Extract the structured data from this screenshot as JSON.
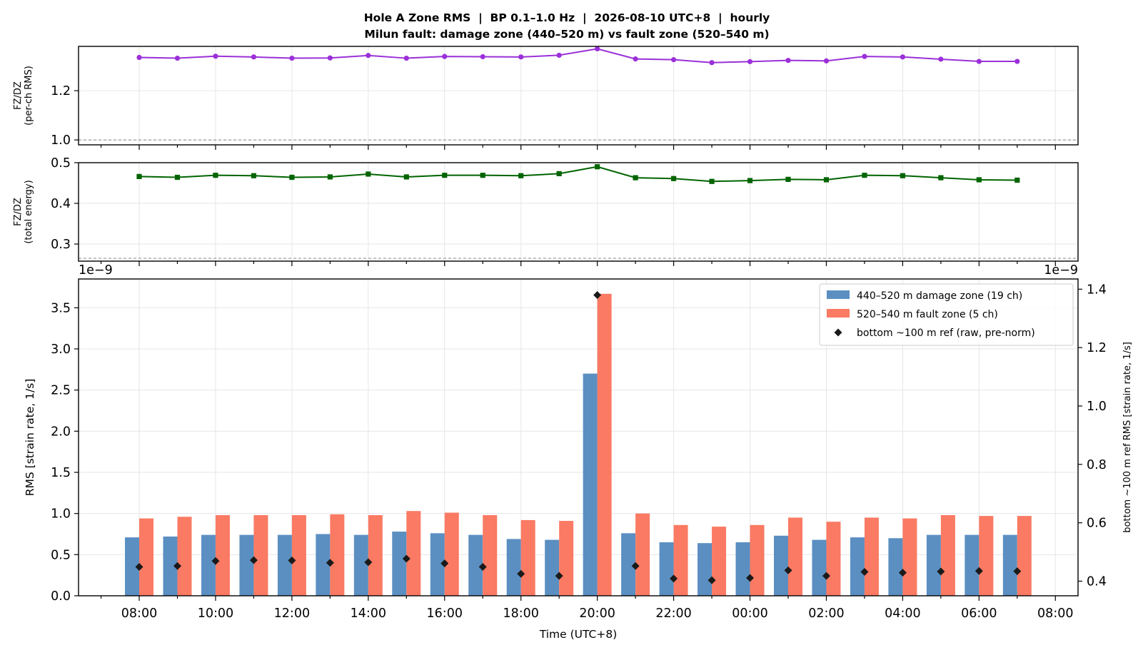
{
  "figure": {
    "title_line1": "Hole A Zone RMS  |  BP 0.1–1.0 Hz  |  2026-08-10 UTC+8  |  hourly",
    "title_line2": "Milun fault: damage zone (440–520 m) vs fault zone (520–540 m)"
  },
  "chart_data": [
    {
      "type": "line",
      "panel": "top",
      "ylabel": [
        "FZ/DZ",
        "(per-ch RMS)"
      ],
      "ylim": [
        0.98,
        1.38
      ],
      "yticks": [
        1.0,
        1.2
      ],
      "ytick_labels": [
        "1.0",
        "1.2"
      ],
      "reference_line": 1.0,
      "grid": true,
      "color": "#9b30d9",
      "marker": "circle",
      "x": [
        "08:00",
        "09:00",
        "10:00",
        "11:00",
        "12:00",
        "13:00",
        "14:00",
        "15:00",
        "16:00",
        "17:00",
        "18:00",
        "19:00",
        "20:00",
        "21:00",
        "22:00",
        "23:00",
        "00:00",
        "01:00",
        "02:00",
        "03:00",
        "04:00",
        "05:00",
        "06:00",
        "07:00"
      ],
      "values": [
        1.335,
        1.332,
        1.34,
        1.337,
        1.332,
        1.333,
        1.343,
        1.332,
        1.339,
        1.338,
        1.337,
        1.344,
        1.37,
        1.329,
        1.326,
        1.314,
        1.318,
        1.323,
        1.321,
        1.339,
        1.337,
        1.328,
        1.319,
        1.319
      ]
    },
    {
      "type": "line",
      "panel": "middle",
      "ylabel": [
        "FZ/DZ",
        "(total energy)"
      ],
      "ylim": [
        0.258,
        0.5
      ],
      "yticks": [
        0.3,
        0.4,
        0.5
      ],
      "ytick_labels": [
        "0.3",
        "0.4",
        "0.5"
      ],
      "reference_line": 0.265,
      "grid": true,
      "color": "#006400",
      "marker": "square",
      "x": [
        "08:00",
        "09:00",
        "10:00",
        "11:00",
        "12:00",
        "13:00",
        "14:00",
        "15:00",
        "16:00",
        "17:00",
        "18:00",
        "19:00",
        "20:00",
        "21:00",
        "22:00",
        "23:00",
        "00:00",
        "01:00",
        "02:00",
        "03:00",
        "04:00",
        "05:00",
        "06:00",
        "07:00"
      ],
      "values": [
        0.466,
        0.464,
        0.469,
        0.468,
        0.464,
        0.465,
        0.472,
        0.465,
        0.469,
        0.469,
        0.468,
        0.473,
        0.49,
        0.463,
        0.461,
        0.454,
        0.456,
        0.459,
        0.458,
        0.469,
        0.468,
        0.463,
        0.458,
        0.457
      ]
    },
    {
      "type": "bar",
      "panel": "bottom",
      "xlabel": "Time (UTC+8)",
      "ylabel": "RMS  [strain rate, 1/s]",
      "y2label": "bottom ~100 m ref RMS  [strain rate, 1/s]",
      "y_offset_label": "1e−9",
      "y2_offset_label": "1e−9",
      "ylim": [
        0,
        3.85
      ],
      "y2lim": [
        0.35,
        1.435
      ],
      "yticks": [
        "0.0",
        "0.5",
        "1.0",
        "1.5",
        "2.0",
        "2.5",
        "3.0",
        "3.5"
      ],
      "y2ticks": [
        "0.4",
        "0.6",
        "0.8",
        "1.0",
        "1.2",
        "1.4"
      ],
      "grid": true,
      "legend_position": "top-right",
      "x_tick_labels": [
        "08:00",
        "10:00",
        "12:00",
        "14:00",
        "16:00",
        "18:00",
        "20:00",
        "22:00",
        "00:00",
        "02:00",
        "04:00",
        "06:00",
        "08:00"
      ],
      "categories": [
        "08:00",
        "09:00",
        "10:00",
        "11:00",
        "12:00",
        "13:00",
        "14:00",
        "15:00",
        "16:00",
        "17:00",
        "18:00",
        "19:00",
        "20:00",
        "21:00",
        "22:00",
        "23:00",
        "00:00",
        "01:00",
        "02:00",
        "03:00",
        "04:00",
        "05:00",
        "06:00",
        "07:00"
      ],
      "series": [
        {
          "name": "440–520 m  damage zone (19 ch)",
          "color": "#5b8fc2",
          "axis": "left",
          "values": [
            0.71,
            0.72,
            0.74,
            0.74,
            0.74,
            0.75,
            0.74,
            0.78,
            0.76,
            0.74,
            0.69,
            0.68,
            2.7,
            0.76,
            0.65,
            0.64,
            0.65,
            0.73,
            0.68,
            0.71,
            0.7,
            0.74,
            0.74,
            0.74
          ]
        },
        {
          "name": "520–540 m  fault zone (5 ch)",
          "color": "#fa7a63",
          "axis": "left",
          "values": [
            0.94,
            0.96,
            0.98,
            0.98,
            0.98,
            0.99,
            0.98,
            1.03,
            1.01,
            0.98,
            0.92,
            0.91,
            3.67,
            1.0,
            0.86,
            0.84,
            0.86,
            0.95,
            0.9,
            0.95,
            0.94,
            0.98,
            0.97,
            0.97
          ]
        },
        {
          "name": "bottom ~100 m ref (raw, pre-norm)",
          "color": "#1a1a1a",
          "marker": "diamond",
          "axis": "right",
          "values": [
            0.449,
            0.452,
            0.469,
            0.472,
            0.471,
            0.463,
            0.465,
            0.477,
            0.461,
            0.449,
            0.425,
            0.418,
            1.38,
            0.452,
            0.409,
            0.403,
            0.411,
            0.437,
            0.418,
            0.432,
            0.429,
            0.433,
            0.435,
            0.434
          ]
        }
      ]
    }
  ]
}
